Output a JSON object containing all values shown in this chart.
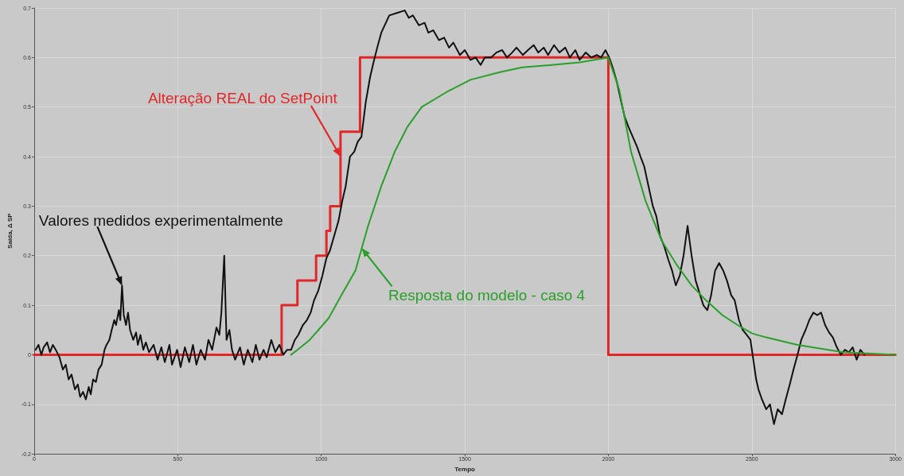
{
  "chart_data": {
    "type": "line",
    "xlabel": "Tempo",
    "ylabel": "Saída, Δ SP",
    "xlim": [
      0,
      3000
    ],
    "xticks": [
      0,
      500,
      1000,
      1500,
      2000,
      2500,
      3000
    ],
    "ylim": [
      -0.2,
      0.7
    ],
    "yticks": [
      -0.2,
      -0.1,
      0,
      0.1,
      0.2,
      0.3,
      0.4,
      0.5,
      0.6,
      0.7
    ],
    "grid": true,
    "annotations": [
      {
        "text": "Alteração REAL do SetPoint",
        "x": 1067,
        "y": 0.4
      },
      {
        "text": "Valores medidos experimentalmente",
        "x": 306,
        "y": 0.14
      },
      {
        "text": "Resposta do modelo - caso 4",
        "x": 1141,
        "y": 0.215
      }
    ],
    "series": [
      {
        "type": "step",
        "color": "#e02828",
        "x": [
          0,
          862,
          917,
          982,
          1018,
          1031,
          1067,
          1135,
          2000,
          3000
        ],
        "values": [
          0,
          0.1,
          0.15,
          0.2,
          0.25,
          0.3,
          0.45,
          0.6,
          0,
          0
        ]
      },
      {
        "color": "#111111",
        "x": [
          5,
          15,
          25,
          33,
          45,
          55,
          65,
          75,
          88,
          100,
          110,
          120,
          130,
          142,
          152,
          160,
          170,
          180,
          190,
          197,
          205,
          215,
          224,
          235,
          245,
          252,
          262,
          270,
          279,
          285,
          295,
          300,
          306,
          312,
          320,
          327,
          334,
          345,
          355,
          361,
          370,
          380,
          389,
          400,
          416,
          430,
          443,
          455,
          471,
          480,
          498,
          510,
          525,
          540,
          553,
          565,
          580,
          595,
          607,
          620,
          635,
          645,
          652,
          662,
          670,
          680,
          689,
          700,
          717,
          730,
          744,
          760,
          772,
          785,
          799,
          810,
          826,
          840,
          854,
          868,
          881,
          895,
          908,
          920,
          936,
          950,
          963,
          975,
          990,
          1004,
          1018,
          1030,
          1045,
          1060,
          1073,
          1085,
          1100,
          1115,
          1127,
          1140,
          1155,
          1170,
          1182,
          1195,
          1209,
          1237,
          1264,
          1291,
          1305,
          1319,
          1340,
          1360,
          1373,
          1390,
          1410,
          1428,
          1445,
          1460,
          1483,
          1500,
          1520,
          1538,
          1555,
          1570,
          1592,
          1610,
          1630,
          1647,
          1665,
          1680,
          1702,
          1720,
          1740,
          1756,
          1775,
          1790,
          1811,
          1830,
          1850,
          1866,
          1885,
          1900,
          1921,
          1940,
          1960,
          1975,
          1990,
          2003,
          2015,
          2030,
          2045,
          2057,
          2070,
          2085,
          2100,
          2112,
          2125,
          2140,
          2155,
          2167,
          2180,
          2194,
          2210,
          2222,
          2235,
          2249,
          2262,
          2276,
          2290,
          2304,
          2320,
          2331,
          2345,
          2358,
          2372,
          2386,
          2400,
          2413,
          2428,
          2440,
          2455,
          2468,
          2482,
          2495,
          2505,
          2515,
          2523,
          2535,
          2550,
          2563,
          2577,
          2590,
          2605,
          2618,
          2632,
          2645,
          2659,
          2672,
          2687,
          2700,
          2714,
          2728,
          2741,
          2755,
          2769,
          2782,
          2796,
          2810,
          2824,
          2838,
          2851,
          2865,
          2878,
          2892
        ],
        "values": [
          0.01,
          0.02,
          0,
          0.015,
          0.025,
          0.005,
          0.02,
          0.01,
          -0.005,
          -0.03,
          -0.02,
          -0.05,
          -0.04,
          -0.07,
          -0.06,
          -0.085,
          -0.075,
          -0.09,
          -0.065,
          -0.08,
          -0.05,
          -0.055,
          -0.03,
          -0.02,
          0.01,
          0.02,
          0.03,
          0.05,
          0.07,
          0.06,
          0.09,
          0.07,
          0.14,
          0.08,
          0.06,
          0.085,
          0.05,
          0.03,
          0.045,
          0.02,
          0.04,
          0.01,
          0.025,
          0.005,
          0.02,
          -0.01,
          0.015,
          -0.015,
          0.02,
          -0.02,
          0.01,
          -0.025,
          0.015,
          -0.015,
          0.02,
          -0.02,
          0.01,
          -0.01,
          0.03,
          0.01,
          0.055,
          0.04,
          0.085,
          0.2,
          0.03,
          0.05,
          0.01,
          -0.01,
          0.015,
          -0.02,
          0.01,
          -0.015,
          0.02,
          -0.01,
          0.01,
          -0.005,
          0.03,
          0.005,
          0.02,
          0,
          0.01,
          0.01,
          0.03,
          0.04,
          0.06,
          0.07,
          0.085,
          0.11,
          0.13,
          0.16,
          0.195,
          0.21,
          0.24,
          0.27,
          0.31,
          0.34,
          0.4,
          0.41,
          0.43,
          0.44,
          0.51,
          0.56,
          0.59,
          0.62,
          0.65,
          0.685,
          0.69,
          0.695,
          0.68,
          0.685,
          0.665,
          0.67,
          0.65,
          0.655,
          0.635,
          0.64,
          0.62,
          0.63,
          0.605,
          0.615,
          0.595,
          0.6,
          0.585,
          0.6,
          0.6,
          0.61,
          0.615,
          0.6,
          0.61,
          0.62,
          0.605,
          0.615,
          0.625,
          0.61,
          0.62,
          0.605,
          0.625,
          0.61,
          0.62,
          0.6,
          0.615,
          0.595,
          0.61,
          0.6,
          0.605,
          0.6,
          0.615,
          0.6,
          0.58,
          0.55,
          0.51,
          0.48,
          0.46,
          0.44,
          0.42,
          0.4,
          0.38,
          0.34,
          0.3,
          0.28,
          0.24,
          0.22,
          0.19,
          0.17,
          0.14,
          0.16,
          0.2,
          0.26,
          0.2,
          0.15,
          0.12,
          0.1,
          0.09,
          0.12,
          0.17,
          0.185,
          0.17,
          0.15,
          0.12,
          0.11,
          0.07,
          0.05,
          0.04,
          0.03,
          -0.01,
          -0.05,
          -0.07,
          -0.09,
          -0.11,
          -0.1,
          -0.14,
          -0.11,
          -0.12,
          -0.09,
          -0.06,
          -0.03,
          0,
          0.03,
          0.05,
          0.07,
          0.085,
          0.08,
          0.085,
          0.06,
          0.045,
          0.035,
          0.015,
          0,
          0.01,
          0.005,
          0.015,
          -0.01,
          0.01,
          0
        ]
      },
      {
        "color": "#2aa02a",
        "x": [
          895,
          917,
          960,
          1026,
          1070,
          1119,
          1163,
          1209,
          1256,
          1300,
          1350,
          1436,
          1520,
          1620,
          1700,
          1803,
          1900,
          2000,
          2038,
          2079,
          2130,
          2186,
          2240,
          2290,
          2340,
          2397,
          2450,
          2501,
          2550,
          2659,
          2818,
          3000
        ],
        "values": [
          0,
          0.01,
          0.03,
          0.074,
          0.12,
          0.17,
          0.26,
          0.34,
          0.41,
          0.46,
          0.5,
          0.53,
          0.555,
          0.57,
          0.58,
          0.585,
          0.59,
          0.6,
          0.535,
          0.41,
          0.31,
          0.23,
          0.18,
          0.14,
          0.11,
          0.08,
          0.06,
          0.043,
          0.035,
          0.02,
          0.005,
          0
        ]
      }
    ]
  }
}
